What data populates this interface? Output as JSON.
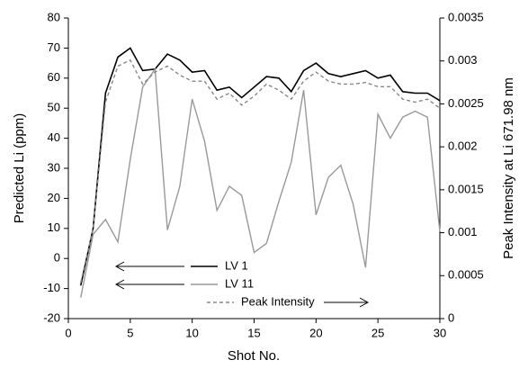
{
  "chart_data": {
    "type": "line",
    "xlabel": "Shot No.",
    "ylabel": "Predicted Li (ppm)",
    "y2label": "Peak Intensity at Li 671.98 nm",
    "x": [
      1,
      2,
      3,
      4,
      5,
      6,
      7,
      8,
      9,
      10,
      11,
      12,
      13,
      14,
      15,
      16,
      17,
      18,
      19,
      20,
      21,
      22,
      23,
      24,
      25,
      26,
      27,
      28,
      29,
      30
    ],
    "xlim": [
      0,
      30
    ],
    "xticks": [
      0,
      5,
      10,
      15,
      20,
      25,
      30
    ],
    "ylim": [
      -20,
      80
    ],
    "yticks": [
      -20,
      -10,
      0,
      10,
      20,
      30,
      40,
      50,
      60,
      70,
      80
    ],
    "y2lim": [
      0,
      0.0035
    ],
    "y2ticks": [
      0,
      0.0005,
      0.001,
      0.0015,
      0.002,
      0.0025,
      0.003,
      0.0035
    ],
    "series": [
      {
        "name": "LV 1",
        "color": "#000000",
        "linestyle": "solid",
        "values": [
          -9,
          10,
          55,
          67,
          70,
          62.5,
          63,
          68,
          66,
          62,
          62.5,
          56,
          57,
          53.5,
          57,
          60.5,
          60,
          55.5,
          62.5,
          65,
          61.5,
          60.5,
          61.5,
          62.5,
          60,
          61,
          55.5,
          55,
          55,
          52.5
        ]
      },
      {
        "name": "LV 11",
        "color": "#999999",
        "linestyle": "solid",
        "values": [
          -13,
          8,
          13,
          5.5,
          33,
          57,
          63,
          9.5,
          24,
          53,
          39,
          16,
          24,
          21,
          2,
          5,
          19,
          32,
          56,
          14.5,
          27,
          31,
          18,
          -3,
          48,
          40,
          47,
          49,
          47,
          9
        ]
      },
      {
        "name": "Peak Intensity",
        "color": "#888888",
        "linestyle": "dashed",
        "axis": "y2",
        "values": [
          0.00042,
          0.00105,
          0.00252,
          0.00294,
          0.00301,
          0.00273,
          0.00287,
          0.00294,
          0.002835,
          0.002765,
          0.002765,
          0.002555,
          0.002625,
          0.002485,
          0.00259,
          0.00273,
          0.00266,
          0.002555,
          0.002765,
          0.00287,
          0.002765,
          0.00273,
          0.00273,
          0.00275,
          0.0027,
          0.0027,
          0.002555,
          0.00252,
          0.002555,
          0.00245
        ]
      }
    ]
  }
}
